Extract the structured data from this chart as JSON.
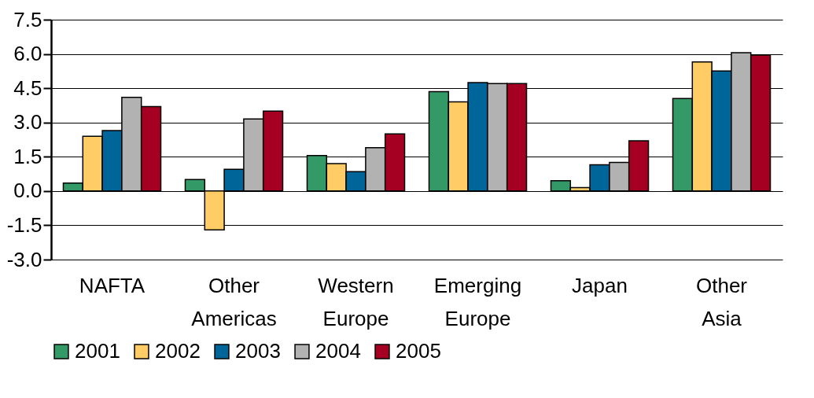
{
  "chart_data": {
    "type": "bar",
    "categories": [
      "NAFTA",
      "Other Americas",
      "Western Europe",
      "Emerging Europe",
      "Japan",
      "Other Asia"
    ],
    "series": [
      {
        "name": "2001",
        "color": "#339966",
        "values": [
          0.35,
          0.5,
          1.55,
          4.35,
          0.45,
          4.05
        ]
      },
      {
        "name": "2002",
        "color": "#ffcc66",
        "values": [
          2.4,
          -1.7,
          1.2,
          3.9,
          0.15,
          5.65
        ]
      },
      {
        "name": "2003",
        "color": "#006699",
        "values": [
          2.65,
          0.95,
          0.85,
          4.75,
          1.15,
          5.25
        ]
      },
      {
        "name": "2004",
        "color": "#b2b2b2",
        "values": [
          4.1,
          3.15,
          1.9,
          4.7,
          1.25,
          6.05
        ]
      },
      {
        "name": "2005",
        "color": "#a50021",
        "values": [
          3.7,
          3.5,
          2.5,
          4.7,
          2.2,
          5.95
        ]
      }
    ],
    "ylim": [
      -3,
      7.5
    ],
    "yticks": [
      {
        "value": -3,
        "label": "-3.0"
      },
      -1.5,
      {
        "value": 0,
        "label": "0.0"
      },
      1.5,
      {
        "value": 3,
        "label": "3.0"
      },
      4.5,
      {
        "value": 6,
        "label": "6.0"
      },
      7.5
    ],
    "grid": "y",
    "legend": "bottom"
  }
}
